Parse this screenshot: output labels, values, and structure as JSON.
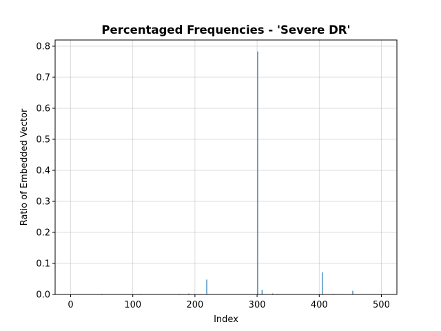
{
  "chart_data": {
    "type": "bar",
    "title": "Percentaged Frequencies - 'Severe DR'",
    "xlabel": "Index",
    "ylabel": "Ratio of Embedded Vector",
    "xlim": [
      -25,
      525
    ],
    "ylim": [
      0,
      0.82
    ],
    "grid": true,
    "bar_color": "#1f77b4",
    "x_ticks": [
      0,
      100,
      200,
      300,
      400,
      500
    ],
    "y_ticks": [
      0.0,
      0.1,
      0.2,
      0.3,
      0.4,
      0.5,
      0.6,
      0.7,
      0.8
    ],
    "series": [
      {
        "x": [
          50,
          112,
          175,
          190,
          219,
          301,
          308,
          325,
          333,
          405,
          423,
          454
        ],
        "values": [
          0.002,
          0.002,
          0.002,
          0.003,
          0.048,
          0.783,
          0.015,
          0.003,
          0.002,
          0.071,
          0.002,
          0.012
        ]
      }
    ]
  }
}
